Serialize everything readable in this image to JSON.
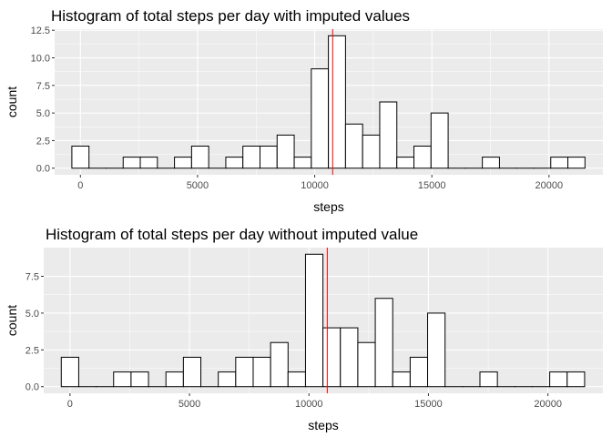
{
  "colors": {
    "panel_background": "#ebebeb",
    "grid_major": "#ffffff",
    "bar_fill": "#ffffff",
    "bar_outline": "#000000",
    "mean_line": "#ff0000",
    "tick_text": "#4d4d4d"
  },
  "chart_data": [
    {
      "type": "bar",
      "title": "Histogram of total steps per day with imputed values",
      "xlabel": "steps",
      "ylabel": "count",
      "bin_width": 730,
      "x": [
        0,
        730,
        1460,
        2190,
        2920,
        3650,
        4380,
        5110,
        5840,
        6570,
        7300,
        8030,
        8760,
        9490,
        10220,
        10950,
        11680,
        12410,
        13140,
        13870,
        14600,
        15330,
        16060,
        16790,
        17520,
        18250,
        18980,
        19710,
        20440,
        21170
      ],
      "values": [
        2,
        0,
        0,
        1,
        1,
        0,
        1,
        2,
        0,
        1,
        2,
        2,
        3,
        1,
        9,
        12,
        4,
        3,
        6,
        1,
        2,
        5,
        0,
        0,
        1,
        0,
        0,
        0,
        1,
        1
      ],
      "mean_line": 10766,
      "xlim": [
        -1100,
        22300
      ],
      "ylim": [
        -0.6,
        12.6
      ],
      "x_ticks": [
        0,
        5000,
        10000,
        15000,
        20000
      ],
      "x_tick_labels": [
        "0",
        "5000",
        "10000",
        "15000",
        "20000"
      ],
      "y_ticks": [
        0,
        2.5,
        5,
        7.5,
        10,
        12.5
      ],
      "y_tick_labels": [
        "0.0",
        "2.5",
        "5.0",
        "7.5",
        "10.0",
        "12.5"
      ],
      "grid": true
    },
    {
      "type": "bar",
      "title": "Histogram of total steps per day without imputed value",
      "xlabel": "steps",
      "ylabel": "count",
      "bin_width": 730,
      "x": [
        0,
        730,
        1460,
        2190,
        2920,
        3650,
        4380,
        5110,
        5840,
        6570,
        7300,
        8030,
        8760,
        9490,
        10220,
        10950,
        11680,
        12410,
        13140,
        13870,
        14600,
        15330,
        16060,
        16790,
        17520,
        18250,
        18980,
        19710,
        20440,
        21170
      ],
      "values": [
        2,
        0,
        0,
        1,
        1,
        0,
        1,
        2,
        0,
        1,
        2,
        2,
        3,
        1,
        9,
        4,
        4,
        3,
        6,
        1,
        2,
        5,
        0,
        0,
        1,
        0,
        0,
        0,
        1,
        1
      ],
      "mean_line": 10766,
      "xlim": [
        -1100,
        22300
      ],
      "ylim": [
        -0.45,
        9.45
      ],
      "x_ticks": [
        0,
        5000,
        10000,
        15000,
        20000
      ],
      "x_tick_labels": [
        "0",
        "5000",
        "10000",
        "15000",
        "20000"
      ],
      "y_ticks": [
        0,
        2.5,
        5,
        7.5
      ],
      "y_tick_labels": [
        "0.0",
        "2.5",
        "5.0",
        "7.5"
      ],
      "grid": true
    }
  ]
}
